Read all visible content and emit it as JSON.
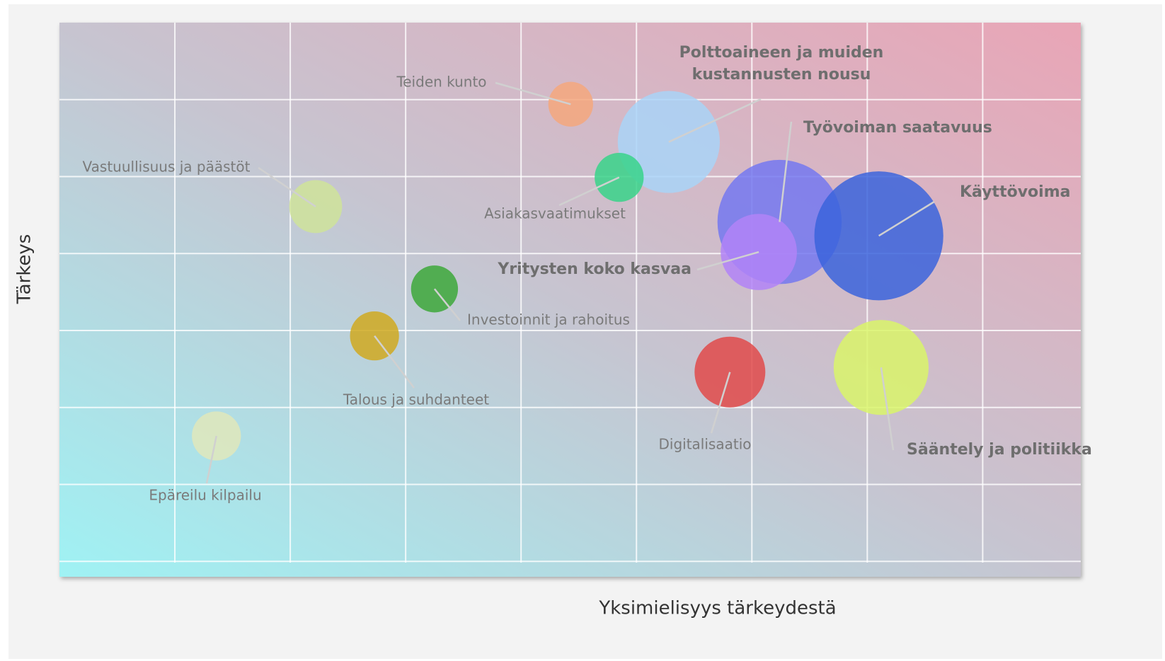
{
  "chart_data": {
    "type": "scatter",
    "xlabel": "Yksimielisyys tärkeydestä",
    "ylabel": "Tärkeys",
    "xlim": [
      0,
      8.85
    ],
    "xticks": [
      1,
      2,
      3,
      4,
      5,
      6,
      7,
      8
    ],
    "ylim": [
      -0.2,
      7
    ],
    "yticks": [
      0,
      1,
      2,
      3,
      4,
      5,
      6
    ],
    "grid": true,
    "labels": [
      "Teiden kunto",
      [
        "Polttoaineen ja muiden",
        "kustannusten nousu"
      ],
      "Asiakasvaatimukset",
      "Vastuullisuus ja päästöt",
      "Työvoiman saatavuus",
      "Käyttövoima",
      "Yritysten koko kasvaa",
      "Investoinnit ja rahoitus",
      "Talous ja suhdanteet",
      "Digitalisaatio",
      "Sääntely ja politiikka",
      "Epäreilu kilpailu"
    ],
    "x": [
      4.43,
      5.28,
      4.85,
      2.22,
      6.24,
      7.1,
      6.06,
      3.25,
      2.73,
      5.81,
      7.12,
      1.36
    ],
    "values": [
      5.94,
      5.45,
      4.99,
      4.61,
      4.41,
      4.23,
      4.02,
      3.54,
      2.93,
      2.46,
      2.52,
      1.63
    ],
    "sizes": [
      10,
      52,
      12,
      14,
      77,
      83,
      29,
      11,
      12,
      25,
      45,
      12
    ],
    "colors": [
      "#f4a77c",
      "#a9d4f7",
      "#38d48a",
      "#cfe39a",
      "#7478f0",
      "#3b64dc",
      "#b184f7",
      "#3da83a",
      "#d0a920",
      "#e04a4a",
      "#d9f56a",
      "#e1e8bb"
    ]
  }
}
